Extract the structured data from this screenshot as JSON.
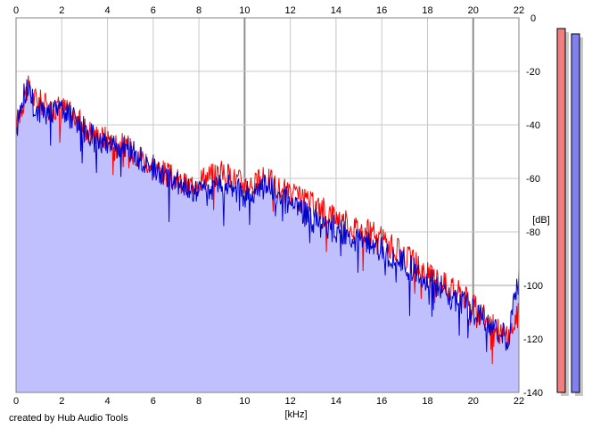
{
  "credit": "created by Hub Audio Tools",
  "chart_data": {
    "type": "line",
    "xlabel": "[kHz]",
    "ylabel": "[dB]",
    "xlim": [
      0,
      22
    ],
    "ylim": [
      -140,
      0
    ],
    "x_ticks": [
      0,
      2,
      4,
      6,
      8,
      10,
      12,
      14,
      16,
      18,
      20,
      22
    ],
    "y_ticks": [
      0,
      -20,
      -40,
      -60,
      -80,
      -100,
      -120,
      -140
    ],
    "grid": true,
    "series": [
      {
        "color": "#ff0000",
        "x": [
          0,
          0.25,
          0.5,
          0.75,
          1,
          1.5,
          2,
          2.5,
          3,
          3.5,
          4,
          4.5,
          5,
          5.5,
          6,
          6.5,
          7,
          7.5,
          8,
          8.5,
          9,
          9.5,
          10,
          10.5,
          11,
          11.5,
          12,
          12.5,
          13,
          13.5,
          14,
          14.5,
          15,
          15.5,
          16,
          16.5,
          17,
          17.5,
          18,
          18.5,
          19,
          19.5,
          20,
          20.5,
          21,
          21.5,
          22
        ],
        "values": [
          -40,
          -33,
          -26,
          -30,
          -31,
          -34,
          -33,
          -37,
          -41,
          -44,
          -45,
          -47,
          -49,
          -52,
          -55,
          -58,
          -61,
          -63,
          -60,
          -59,
          -58,
          -60,
          -62,
          -62,
          -60,
          -64,
          -66,
          -68,
          -70,
          -72,
          -74,
          -77,
          -79,
          -80,
          -83,
          -86,
          -89,
          -92,
          -96,
          -98,
          -101,
          -103,
          -108,
          -112,
          -116,
          -120,
          -110
        ]
      },
      {
        "color": "#0000c8",
        "x": [
          0,
          0.25,
          0.5,
          0.75,
          1,
          1.5,
          2,
          2.5,
          3,
          3.5,
          4,
          4.5,
          5,
          5.5,
          6,
          6.5,
          7,
          7.5,
          8,
          8.5,
          9,
          9.5,
          10,
          10.5,
          11,
          11.5,
          12,
          12.5,
          13,
          13.5,
          14,
          14.5,
          15,
          15.5,
          16,
          16.5,
          17,
          17.5,
          18,
          18.5,
          19,
          19.5,
          20,
          20.5,
          21,
          21.5,
          22
        ],
        "values": [
          -42,
          -31,
          -26,
          -32,
          -35,
          -36,
          -35,
          -38,
          -42,
          -46,
          -46,
          -48,
          -50,
          -53,
          -56,
          -60,
          -62,
          -65,
          -66,
          -64,
          -62,
          -64,
          -66,
          -65,
          -63,
          -66,
          -69,
          -72,
          -76,
          -78,
          -79,
          -81,
          -83,
          -85,
          -87,
          -89,
          -92,
          -95,
          -98,
          -100,
          -104,
          -106,
          -110,
          -113,
          -117,
          -120,
          -98
        ]
      }
    ],
    "channel_meters": [
      {
        "color": "#f08080",
        "level_db": -4
      },
      {
        "color": "#8080f0",
        "level_db": -6
      }
    ]
  }
}
